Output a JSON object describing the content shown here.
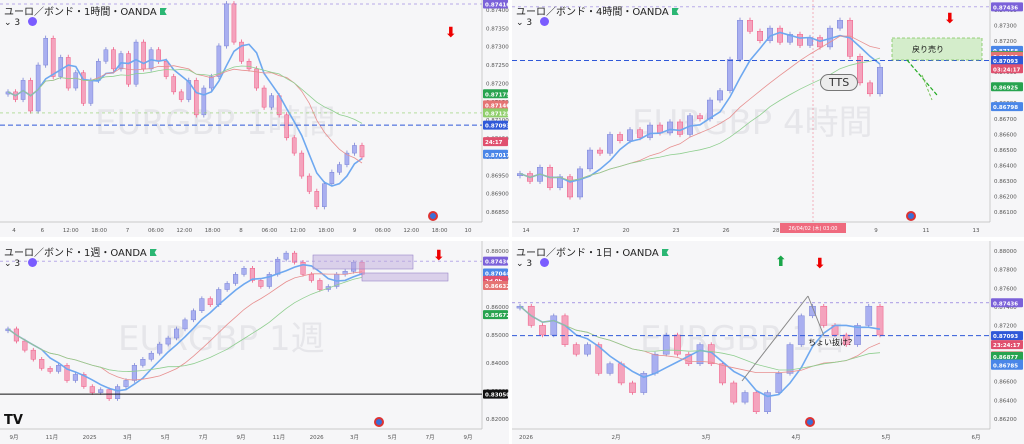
{
  "panels": [
    {
      "id": "p1",
      "title": "ユーロ／ボンド・1時間・OANDA",
      "sub": "3",
      "watermark": "EURGBP 1時間",
      "arrow": "down",
      "price_labels": [
        {
          "text": "0.87416",
          "y": 0.87416,
          "color": "#7b61d9"
        },
        {
          "text": "0.87175",
          "y": 0.87175,
          "color": "#27a34f"
        },
        {
          "text": "0.87146",
          "y": 0.87146,
          "color": "#e57373"
        },
        {
          "text": "0.87125",
          "y": 0.87125,
          "color": "#8fce6a"
        },
        {
          "text": "0.87093",
          "y": 0.87093,
          "color": "#2f58d8"
        },
        {
          "text": "24:17",
          "y": 0.8705,
          "color": "#e0506e"
        },
        {
          "text": "0.87017",
          "y": 0.87017,
          "color": "#4a86e8"
        }
      ],
      "axis_ticks": [
        "0.87400",
        "0.87350",
        "0.87300",
        "0.87250",
        "0.87200",
        "0.87150",
        "0.87100",
        "0.87050",
        "0.87000",
        "0.86950",
        "0.86900",
        "0.86850"
      ],
      "x_ticks": [
        "4",
        "6",
        "12:00",
        "18:00",
        "7",
        "06:00",
        "12:00",
        "18:00",
        "8",
        "06:00",
        "12:00",
        "18:00",
        "9",
        "06:00",
        "12:00",
        "18:00",
        "10"
      ]
    },
    {
      "id": "p2",
      "title": "ユーロ／ボンド・4時間・OANDA",
      "sub": "3",
      "watermark": "EURGBP 4時間",
      "arrow": "down",
      "annotations": {
        "modori": "戻り売り",
        "tts": "TTS",
        "date_label": "26/04/02 (木) 03:00"
      },
      "price_labels": [
        {
          "text": "0.87436",
          "y": 0.87436,
          "color": "#7b61d9"
        },
        {
          "text": "0.87158",
          "y": 0.87158,
          "color": "#4a86e8"
        },
        {
          "text": "0.87125",
          "y": 0.87125,
          "color": "#27a34f"
        },
        {
          "text": "0.87120",
          "y": 0.8712,
          "color": "#e57373"
        },
        {
          "text": "0.87093",
          "y": 0.87093,
          "color": "#2f58d8"
        },
        {
          "text": "03:24:17",
          "y": 0.8704,
          "color": "#e0506e"
        },
        {
          "text": "0.86925",
          "y": 0.86925,
          "color": "#27a34f"
        },
        {
          "text": "0.86798",
          "y": 0.86798,
          "color": "#4a86e8"
        }
      ],
      "axis_ticks": [
        "0.87400",
        "0.87300",
        "0.87200",
        "0.87100",
        "0.87000",
        "0.86900",
        "0.86800",
        "0.86700",
        "0.86600",
        "0.86500",
        "0.86400",
        "0.86300",
        "0.86200",
        "0.86100"
      ],
      "x_ticks": [
        "14",
        "17",
        "20",
        "23",
        "26",
        "28",
        "7",
        "9",
        "11",
        "13"
      ]
    },
    {
      "id": "p3",
      "title": "ユーロ／ボンド・1週・OANDA",
      "sub": "3",
      "watermark": "EURGBP 1週",
      "arrow": "down",
      "price_labels": [
        {
          "text": "0.87436",
          "y": 0.87436,
          "color": "#7b61d9"
        },
        {
          "text": "0.87044",
          "y": 0.87044,
          "color": "#4a86e8"
        },
        {
          "text": "2d 0h",
          "y": 0.868,
          "color": "#e0506e"
        },
        {
          "text": "0.86632",
          "y": 0.86632,
          "color": "#e57373"
        },
        {
          "text": "0.85672",
          "y": 0.85672,
          "color": "#27a34f"
        },
        {
          "text": "0.83050",
          "y": 0.8305,
          "color": "#111111"
        }
      ],
      "axis_ticks": [
        "0.88000",
        "0.87000",
        "0.86000",
        "0.85000",
        "0.84000",
        "0.83000",
        "0.82000"
      ],
      "x_ticks": [
        "9月",
        "11月",
        "2025",
        "3月",
        "5月",
        "7月",
        "9月",
        "11月",
        "2026",
        "3月",
        "5月",
        "7月",
        "9月"
      ]
    },
    {
      "id": "p4",
      "title": "ユーロ／ボンド・1日・OANDA",
      "sub": "3",
      "watermark": "EURGBP 1日",
      "arrow": "both",
      "annotations": {
        "choi": "ちょい抜け？"
      },
      "price_labels": [
        {
          "text": "0.87436",
          "y": 0.87436,
          "color": "#7b61d9"
        },
        {
          "text": "0.87093",
          "y": 0.87093,
          "color": "#2f58d8"
        },
        {
          "text": "23:24:17",
          "y": 0.87,
          "color": "#e0506e"
        },
        {
          "text": "0.86883",
          "y": 0.86883,
          "color": "#e57373"
        },
        {
          "text": "0.86877",
          "y": 0.86877,
          "color": "#27a34f"
        },
        {
          "text": "0.86798",
          "y": 0.86798,
          "color": "#4a86e8"
        },
        {
          "text": "0.86785",
          "y": 0.86785,
          "color": "#4a86e8"
        }
      ],
      "axis_ticks": [
        "0.88000",
        "0.87800",
        "0.87600",
        "0.87400",
        "0.87200",
        "0.87000",
        "0.86800",
        "0.86600",
        "0.86400",
        "0.86200"
      ],
      "x_ticks": [
        "2026",
        "2月",
        "3月",
        "4月",
        "5月",
        "6月"
      ]
    }
  ],
  "chart_data": [
    {
      "type": "line",
      "title": "ユーロ／ボンド・1時間・OANDA",
      "ylim": [
        0.8684,
        0.8742
      ],
      "series": [
        {
          "values": [
            0.8718,
            0.8716,
            0.8721,
            0.8713,
            0.8725,
            0.8732,
            0.8722,
            0.8727,
            0.8719,
            0.8723,
            0.8715,
            0.8721,
            0.8726,
            0.8729,
            0.8724,
            0.8728,
            0.872,
            0.8731,
            0.8724,
            0.8729,
            0.8726,
            0.8722,
            0.8718,
            0.8716,
            0.8721,
            0.8712,
            0.8719,
            0.8722,
            0.873,
            0.8741,
            0.8731,
            0.8726,
            0.8724,
            0.8719,
            0.8714,
            0.8717,
            0.8712,
            0.8706,
            0.8702,
            0.8696,
            0.8692,
            0.8688,
            0.8694,
            0.8697,
            0.8699,
            0.8702,
            0.8704,
            0.8701
          ]
        }
      ]
    },
    {
      "type": "line",
      "title": "ユーロ／ボンド・4時間・OANDA",
      "ylim": [
        0.8606,
        0.8748
      ],
      "series": [
        {
          "values": [
            0.8637,
            0.8632,
            0.8641,
            0.8628,
            0.8635,
            0.8622,
            0.864,
            0.8652,
            0.865,
            0.8662,
            0.8658,
            0.8665,
            0.866,
            0.8668,
            0.8663,
            0.867,
            0.8662,
            0.8674,
            0.8672,
            0.8684,
            0.869,
            0.871,
            0.8735,
            0.8728,
            0.8722,
            0.873,
            0.8721,
            0.8726,
            0.8719,
            0.8724,
            0.8718,
            0.873,
            0.8735,
            0.8712,
            0.8695,
            0.8688,
            0.8705
          ]
        }
      ]
    },
    {
      "type": "line",
      "title": "ユーロ／ボンド・1週・OANDA",
      "ylim": [
        0.819,
        0.881
      ],
      "series": [
        {
          "values": [
            0.852,
            0.848,
            0.845,
            0.842,
            0.839,
            0.838,
            0.84,
            0.835,
            0.837,
            0.833,
            0.831,
            0.832,
            0.829,
            0.833,
            0.835,
            0.84,
            0.842,
            0.844,
            0.847,
            0.849,
            0.852,
            0.855,
            0.858,
            0.862,
            0.86,
            0.865,
            0.867,
            0.87,
            0.872,
            0.868,
            0.866,
            0.87,
            0.875,
            0.877,
            0.874,
            0.87,
            0.868,
            0.865,
            0.866,
            0.87,
            0.871,
            0.874,
            0.87
          ]
        }
      ]
    },
    {
      "type": "line",
      "title": "ユーロ／ボンド・1日・OANDA",
      "ylim": [
        0.8612,
        0.8808
      ],
      "series": [
        {
          "values": [
            0.874,
            0.872,
            0.871,
            0.873,
            0.87,
            0.869,
            0.87,
            0.867,
            0.868,
            0.866,
            0.865,
            0.867,
            0.869,
            0.871,
            0.869,
            0.868,
            0.87,
            0.868,
            0.866,
            0.864,
            0.865,
            0.863,
            0.865,
            0.867,
            0.87,
            0.873,
            0.874,
            0.872,
            0.871,
            0.87,
            0.872,
            0.874,
            0.871
          ]
        }
      ]
    }
  ]
}
